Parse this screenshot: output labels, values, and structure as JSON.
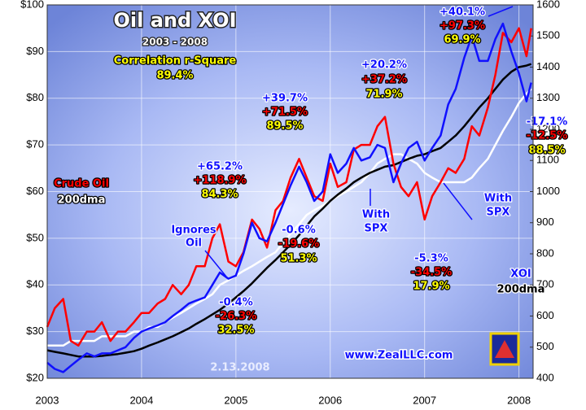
{
  "chart_data": {
    "type": "line",
    "title": "Oil and XOI",
    "subtitle": "2003 - 2008",
    "x": [
      2003,
      2003.08,
      2003.17,
      2003.25,
      2003.33,
      2003.42,
      2003.5,
      2003.58,
      2003.67,
      2003.75,
      2003.83,
      2003.92,
      2004,
      2004.08,
      2004.17,
      2004.25,
      2004.33,
      2004.42,
      2004.5,
      2004.58,
      2004.67,
      2004.75,
      2004.83,
      2004.92,
      2005,
      2005.08,
      2005.17,
      2005.25,
      2005.33,
      2005.42,
      2005.5,
      2005.58,
      2005.67,
      2005.75,
      2005.83,
      2005.92,
      2006,
      2006.08,
      2006.17,
      2006.25,
      2006.33,
      2006.42,
      2006.5,
      2006.58,
      2006.67,
      2006.75,
      2006.83,
      2006.92,
      2007,
      2007.08,
      2007.17,
      2007.25,
      2007.33,
      2007.42,
      2007.5,
      2007.58,
      2007.67,
      2007.75,
      2007.83,
      2007.92,
      2008,
      2008.08,
      2008.13
    ],
    "series": [
      {
        "name": "200dma",
        "color": "#ffffff",
        "values": [
          27,
          27,
          27,
          28,
          28,
          28,
          28,
          29,
          29,
          29,
          29,
          30,
          30,
          31,
          31,
          32,
          33,
          34,
          35,
          36,
          37,
          38,
          40,
          41,
          42,
          43,
          44,
          45,
          46,
          47,
          49,
          51,
          53,
          55,
          56,
          57,
          58,
          59,
          60,
          61,
          62,
          64,
          66,
          67,
          68,
          68,
          67,
          66,
          64,
          63,
          62,
          62,
          62,
          62,
          63,
          65,
          67,
          70,
          73,
          76,
          79,
          81,
          82
        ]
      },
      {
        "name": "200dma",
        "color": "#000000",
        "axis": "y2",
        "values": [
          490,
          485,
          480,
          475,
          470,
          470,
          470,
          472,
          475,
          478,
          482,
          487,
          495,
          505,
          515,
          525,
          535,
          548,
          560,
          575,
          590,
          605,
          620,
          640,
          660,
          680,
          705,
          730,
          755,
          780,
          805,
          830,
          860,
          890,
          920,
          945,
          970,
          990,
          1010,
          1030,
          1045,
          1060,
          1070,
          1080,
          1085,
          1095,
          1105,
          1115,
          1120,
          1130,
          1140,
          1160,
          1180,
          1210,
          1240,
          1270,
          1300,
          1330,
          1360,
          1385,
          1400,
          1405,
          1410
        ]
      },
      {
        "name": "Crude Oil",
        "color": "#ff0000",
        "values": [
          31,
          35,
          37,
          28,
          27,
          30,
          30,
          32,
          28,
          30,
          30,
          32,
          34,
          34,
          36,
          37,
          40,
          38,
          40,
          44,
          44,
          50,
          53,
          45,
          44,
          47,
          54,
          52,
          48,
          56,
          58,
          63,
          67,
          63,
          59,
          58,
          66,
          61,
          62,
          69,
          70,
          70,
          74,
          76,
          66,
          61,
          59,
          62,
          54,
          59,
          62,
          65,
          64,
          67,
          74,
          72,
          78,
          85,
          94,
          92,
          95,
          89,
          95
        ]
      },
      {
        "name": "XOI",
        "color": "#1010ff",
        "axis": "y2",
        "values": [
          450,
          430,
          420,
          440,
          460,
          480,
          470,
          480,
          480,
          490,
          500,
          530,
          550,
          560,
          570,
          580,
          600,
          620,
          640,
          650,
          660,
          700,
          740,
          720,
          730,
          800,
          900,
          850,
          840,
          900,
          960,
          1020,
          1080,
          1030,
          970,
          1000,
          1120,
          1060,
          1090,
          1140,
          1100,
          1110,
          1150,
          1140,
          1030,
          1090,
          1140,
          1160,
          1100,
          1140,
          1180,
          1280,
          1330,
          1430,
          1500,
          1420,
          1420,
          1490,
          1540,
          1450,
          1380,
          1290,
          1350
        ]
      }
    ],
    "xlim": [
      2003,
      2008.15
    ],
    "xticks": [
      2003,
      2004,
      2005,
      2006,
      2007,
      2008
    ],
    "ylim": [
      20,
      100
    ],
    "yticks": [
      {
        "value": 20,
        "label": "$20"
      },
      {
        "value": 30,
        "label": "$30"
      },
      {
        "value": 40,
        "label": "$40"
      },
      {
        "value": 50,
        "label": "$50"
      },
      {
        "value": 60,
        "label": "$60"
      },
      {
        "value": 70,
        "label": "$70"
      },
      {
        "value": 80,
        "label": "$80"
      },
      {
        "value": 90,
        "label": "$90"
      },
      {
        "value": 100,
        "label": "$100"
      }
    ],
    "y2lim": [
      400,
      1600
    ],
    "y2ticks": [
      400,
      500,
      600,
      700,
      800,
      900,
      1000,
      1100,
      1200,
      1300,
      1400,
      1500,
      1600
    ],
    "grid": true,
    "annotations": [
      {
        "text": "Correlation r-Square",
        "color": "#ffff00"
      },
      {
        "text": "89.4%",
        "color": "#ffff00"
      },
      {
        "text": "Ignores",
        "color": "#1010ff"
      },
      {
        "text": "Oil",
        "color": "#1010ff"
      },
      {
        "text": "+65.2%",
        "color": "#1010ff"
      },
      {
        "text": "+118.9%",
        "color": "#ff0000"
      },
      {
        "text": "84.3%",
        "color": "#ffff00"
      },
      {
        "text": "-0.4%",
        "color": "#1010ff"
      },
      {
        "text": "-26.3%",
        "color": "#ff0000"
      },
      {
        "text": "32.5%",
        "color": "#ffff00"
      },
      {
        "text": "+39.7%",
        "color": "#1010ff"
      },
      {
        "text": "+71.5%",
        "color": "#ff0000"
      },
      {
        "text": "89.5%",
        "color": "#ffff00"
      },
      {
        "text": "-0.6%",
        "color": "#1010ff"
      },
      {
        "text": "-19.6%",
        "color": "#ff0000"
      },
      {
        "text": "51.3%",
        "color": "#ffff00"
      },
      {
        "text": "+20.2%",
        "color": "#1010ff"
      },
      {
        "text": "+37.2%",
        "color": "#ff0000"
      },
      {
        "text": "71.9%",
        "color": "#ffff00"
      },
      {
        "text": "With",
        "color": "#1010ff"
      },
      {
        "text": "SPX",
        "color": "#1010ff"
      },
      {
        "text": "-5.3%",
        "color": "#1010ff"
      },
      {
        "text": "-34.5%",
        "color": "#ff0000"
      },
      {
        "text": "17.9%",
        "color": "#ffff00"
      },
      {
        "text": "With",
        "color": "#1010ff"
      },
      {
        "text": "SPX",
        "color": "#1010ff"
      },
      {
        "text": "+40.1%",
        "color": "#1010ff"
      },
      {
        "text": "+97.3%",
        "color": "#ff0000"
      },
      {
        "text": "69.9%",
        "color": "#ffff00"
      },
      {
        "text": "-17.1%",
        "color": "#1010ff"
      },
      {
        "text": "-12.5%",
        "color": "#ff0000"
      },
      {
        "text": "88.5%",
        "color": "#ffff00"
      },
      {
        "text": "www.ZealLLC.com",
        "color": "#1010ff"
      },
      {
        "text": "2.13.2008",
        "color": "#e8ecff"
      }
    ]
  }
}
